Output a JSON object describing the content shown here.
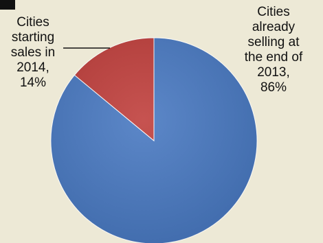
{
  "chart_data": {
    "type": "pie",
    "slices": [
      {
        "label": "Cities already selling at the end of 2013",
        "label_lines": [
          "Cities",
          "already",
          "selling at",
          "the end of",
          "2013,",
          "86%"
        ],
        "value": 86,
        "color": "#4a7ac2"
      },
      {
        "label": "Cities starting sales in 2014",
        "label_lines": [
          "Cities",
          "starting",
          "sales in",
          "2014,",
          "14%"
        ],
        "value": 14,
        "color": "#c0403d"
      }
    ],
    "start_angle": "12 o'clock",
    "direction": "clockwise",
    "legend": "none"
  }
}
